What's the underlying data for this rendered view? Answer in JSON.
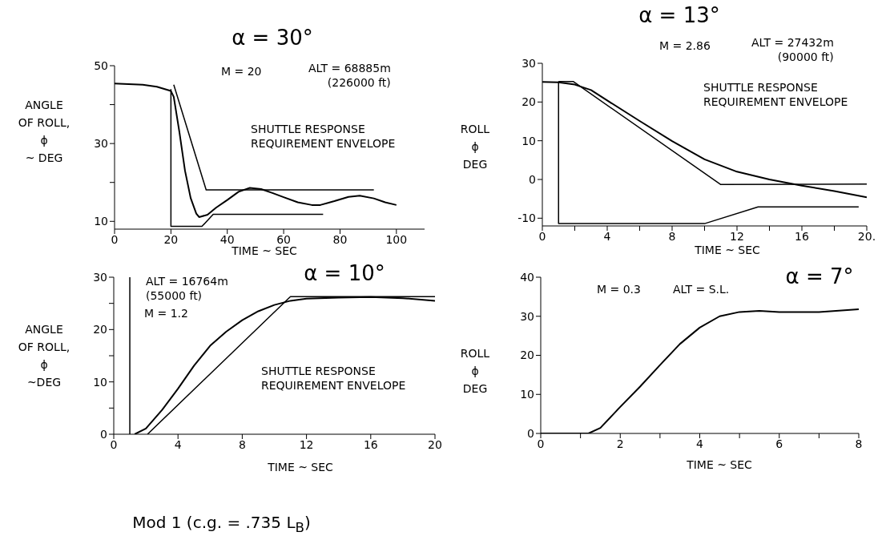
{
  "chart_data": [
    {
      "type": "line",
      "title": "α = 30°",
      "xlabel": "TIME ~ SEC",
      "ylabel": "ANGLE\nOF ROLL,\nϕ\n~ DEG",
      "xlim": [
        0,
        110
      ],
      "xticks": [
        0,
        20,
        40,
        60,
        80,
        100
      ],
      "ylim": [
        8,
        50
      ],
      "yticks": [
        10,
        {
          "value": 20,
          "label": null
        },
        30,
        {
          "value": 40,
          "label": null
        },
        50
      ],
      "annotations": [
        "M = 20",
        "ALT = 68885m\n(226000 ft)",
        "SHUTTLE RESPONSE\nREQUIREMENT ENVELOPE"
      ],
      "series": [
        {
          "color": "#000000",
          "x": [
            0,
            10,
            15,
            20,
            21,
            23,
            25,
            27,
            29,
            30,
            33,
            36,
            40,
            44,
            48,
            52,
            56,
            60,
            65,
            70,
            73,
            78,
            83,
            87,
            92,
            96,
            100
          ],
          "values": [
            45.4,
            45.1,
            44.6,
            43.5,
            42,
            33,
            23,
            16,
            12,
            11.1,
            11.7,
            13.5,
            15.5,
            17.6,
            18.6,
            18.3,
            17.3,
            16.2,
            14.9,
            14.2,
            14.2,
            15.2,
            16.3,
            16.6,
            15.9,
            14.9,
            14.2
          ]
        },
        {
          "color": "#000000",
          "x": [
            21,
            32.5,
            92
          ],
          "values": [
            45.1,
            18.1,
            18.1
          ]
        },
        {
          "color": "#000000",
          "x": [
            20,
            20,
            31,
            35,
            74
          ],
          "values": [
            44,
            8.7,
            8.7,
            11.8,
            11.8
          ]
        }
      ]
    },
    {
      "type": "line",
      "title": "α = 13°",
      "xlabel": "TIME ~ SEC",
      "ylabel": "ROLL\nϕ\nDEG",
      "xlim": [
        0,
        20
      ],
      "xticks": [
        0,
        {
          "value": 2,
          "label": null
        },
        4,
        {
          "value": 6,
          "label": null
        },
        8,
        {
          "value": 10,
          "label": null
        },
        12,
        {
          "value": 14,
          "label": null
        },
        16,
        {
          "value": 18,
          "label": null
        },
        {
          "value": 20,
          "label": "20."
        }
      ],
      "ylim": [
        -12,
        30
      ],
      "yticks": [
        -10,
        0,
        10,
        20,
        30
      ],
      "annotations": [
        "M = 2.86",
        "ALT = 27432m\n(90000 ft)",
        "SHUTTLE RESPONSE\nREQUIREMENT ENVELOPE"
      ],
      "series": [
        {
          "color": "#000000",
          "x": [
            0,
            1,
            2,
            3,
            4,
            6,
            8,
            10,
            12,
            14,
            16,
            18,
            20
          ],
          "values": [
            25.2,
            25.1,
            24.5,
            23.1,
            20.4,
            15.1,
            9.9,
            5.2,
            2.0,
            0,
            -1.6,
            -3,
            -4.6
          ]
        },
        {
          "color": "#000000",
          "x": [
            1,
            1.9,
            11,
            20
          ],
          "values": [
            25.3,
            25.3,
            -1.3,
            -1.2
          ]
        },
        {
          "color": "#000000",
          "x": [
            1,
            1,
            10,
            13.3,
            19.5
          ],
          "values": [
            25.3,
            -11.4,
            -11.4,
            -7.1,
            -7.1
          ]
        }
      ]
    },
    {
      "type": "line",
      "title": "α = 10°",
      "xlabel": "TIME ~ SEC",
      "ylabel": "ANGLE\nOF ROLL,\nϕ\n~DEG",
      "xlim": [
        0,
        20
      ],
      "xticks": [
        0,
        4,
        8,
        12,
        16,
        20
      ],
      "ylim": [
        0,
        30
      ],
      "yticks": [
        0,
        {
          "value": 5,
          "label": null
        },
        10,
        {
          "value": 15,
          "label": null
        },
        20,
        {
          "value": 25,
          "label": null
        },
        30
      ],
      "annotations": [
        "ALT = 16764m\n(55000 ft)",
        "M = 1.2",
        "SHUTTLE RESPONSE\nREQUIREMENT ENVELOPE"
      ],
      "series": [
        {
          "color": "#000000",
          "x": [
            1.3,
            2,
            3,
            4,
            5,
            6,
            7,
            8,
            9,
            10,
            11,
            12,
            14,
            16,
            18,
            20
          ],
          "values": [
            0,
            1.1,
            4.6,
            8.7,
            13.1,
            16.9,
            19.6,
            21.8,
            23.5,
            24.7,
            25.5,
            25.9,
            26.1,
            26.2,
            26.0,
            25.5
          ]
        },
        {
          "color": "#000000",
          "x": [
            2.1,
            10.7,
            11,
            20
          ],
          "values": [
            0,
            25.4,
            26.3,
            26.3
          ]
        },
        {
          "color": "#000000",
          "x": [
            1,
            1
          ],
          "values": [
            0,
            30
          ]
        }
      ]
    },
    {
      "type": "line",
      "title": "α = 7°",
      "xlabel": "TIME ~ SEC",
      "ylabel": "ROLL\nϕ\nDEG",
      "xlim": [
        0,
        8
      ],
      "xticks": [
        0,
        {
          "value": 1,
          "label": null
        },
        2,
        {
          "value": 3,
          "label": null
        },
        4,
        {
          "value": 5,
          "label": null
        },
        6,
        {
          "value": 7,
          "label": null
        },
        8
      ],
      "ylim": [
        0,
        40
      ],
      "yticks": [
        0,
        10,
        20,
        30,
        40
      ],
      "annotations": [
        "M = 0.3",
        "ALT = S.L.",
        "Mod 1 (c.g. = .735 L$_{B}$)"
      ],
      "series": [
        {
          "color": "#000000",
          "x": [
            0,
            1.2,
            1.5,
            2,
            2.5,
            3,
            3.5,
            4,
            4.5,
            5,
            5.5,
            6,
            7,
            8
          ],
          "values": [
            0,
            0,
            1.4,
            6.8,
            12,
            17.5,
            22.9,
            27.1,
            30,
            31.1,
            31.4,
            31.1,
            31.1,
            31.8
          ]
        }
      ]
    }
  ]
}
